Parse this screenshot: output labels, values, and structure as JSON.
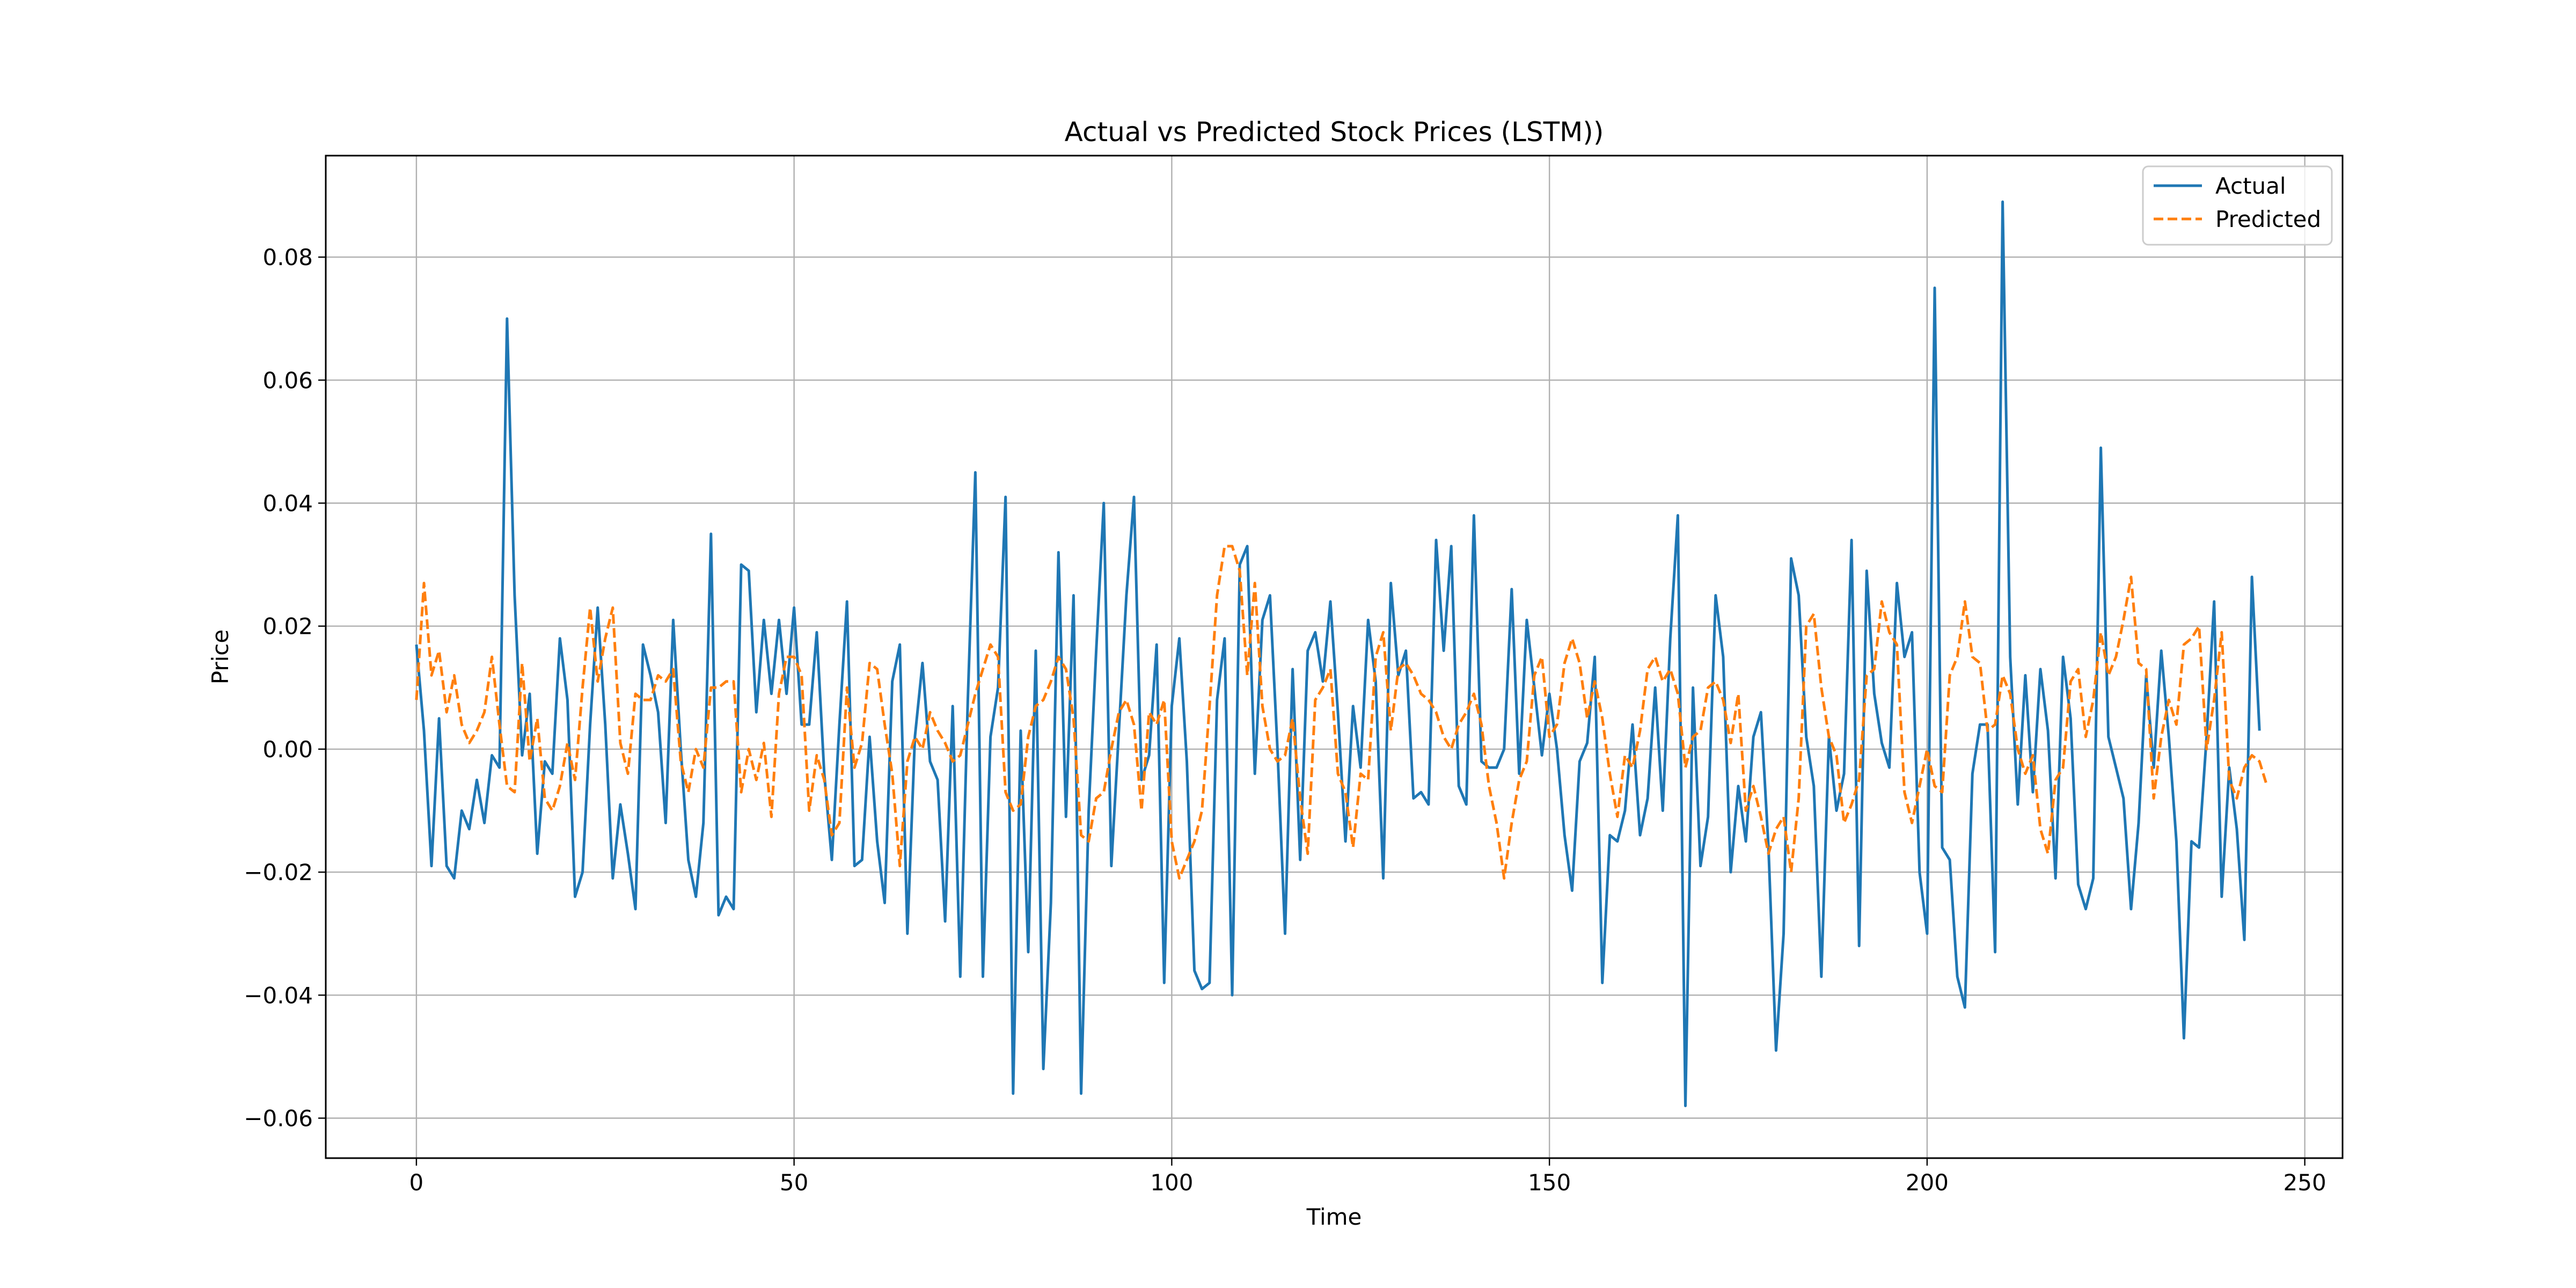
{
  "chart_data": {
    "type": "line",
    "title": "Actual vs Predicted Stock Prices (LSTM))",
    "xlabel": "Time",
    "ylabel": "Price",
    "xlim": [
      -12,
      255
    ],
    "ylim": [
      -0.0665,
      0.0965
    ],
    "xticks": [
      0,
      50,
      100,
      150,
      200,
      250
    ],
    "yticks": [
      -0.06,
      -0.04,
      -0.02,
      0.0,
      0.02,
      0.04,
      0.06,
      0.08
    ],
    "xtick_labels": [
      "0",
      "50",
      "100",
      "150",
      "200",
      "250"
    ],
    "ytick_labels": [
      "−0.06",
      "−0.04",
      "−0.02",
      "0.00",
      "0.02",
      "0.04",
      "0.06",
      "0.08"
    ],
    "grid": true,
    "legend_position": "top-right",
    "series": [
      {
        "name": "Actual",
        "color": "#1f77b4",
        "style": "solid",
        "values": [
          0.017,
          0.003,
          -0.019,
          0.005,
          -0.019,
          -0.021,
          -0.01,
          -0.013,
          -0.005,
          -0.012,
          -0.001,
          -0.003,
          0.07,
          0.025,
          -0.001,
          0.009,
          -0.017,
          -0.002,
          -0.004,
          0.018,
          0.008,
          -0.024,
          -0.02,
          0.004,
          0.023,
          0.004,
          -0.021,
          -0.009,
          -0.017,
          -0.026,
          0.017,
          0.012,
          0.006,
          -0.012,
          0.021,
          0.0,
          -0.018,
          -0.024,
          -0.012,
          0.035,
          -0.027,
          -0.024,
          -0.026,
          0.03,
          0.029,
          0.006,
          0.021,
          0.009,
          0.021,
          0.009,
          0.023,
          0.004,
          0.004,
          0.019,
          -0.004,
          -0.018,
          0.004,
          0.024,
          -0.019,
          -0.018,
          0.002,
          -0.015,
          -0.025,
          0.011,
          0.017,
          -0.03,
          0.002,
          0.014,
          -0.002,
          -0.005,
          -0.028,
          0.007,
          -0.037,
          0.008,
          0.045,
          -0.037,
          0.002,
          0.01,
          0.041,
          -0.056,
          0.003,
          -0.033,
          0.016,
          -0.052,
          -0.025,
          0.032,
          -0.011,
          0.025,
          -0.056,
          -0.01,
          0.016,
          0.04,
          -0.019,
          0.003,
          0.025,
          0.041,
          -0.005,
          -0.001,
          0.017,
          -0.038,
          0.007,
          0.018,
          -0.002,
          -0.036,
          -0.039,
          -0.038,
          0.008,
          0.018,
          -0.04,
          0.03,
          0.033,
          -0.004,
          0.021,
          0.025,
          0.0,
          -0.03,
          0.013,
          -0.018,
          0.016,
          0.019,
          0.011,
          0.024,
          0.006,
          -0.015,
          0.007,
          -0.003,
          0.021,
          0.011,
          -0.021,
          0.027,
          0.012,
          0.016,
          -0.008,
          -0.007,
          -0.009,
          0.034,
          0.016,
          0.033,
          -0.006,
          -0.009,
          0.038,
          -0.002,
          -0.003,
          -0.003,
          0.0,
          0.026,
          -0.004,
          0.021,
          0.01,
          -0.001,
          0.009,
          0.0,
          -0.014,
          -0.023,
          -0.002,
          0.001,
          0.015,
          -0.038,
          -0.014,
          -0.015,
          -0.01,
          0.004,
          -0.014,
          -0.008,
          0.01,
          -0.01,
          0.018,
          0.038,
          -0.058,
          0.01,
          -0.019,
          -0.011,
          0.025,
          0.015,
          -0.02,
          -0.006,
          -0.015,
          0.002,
          0.006,
          -0.016,
          -0.049,
          -0.03,
          0.031,
          0.025,
          0.002,
          -0.006,
          -0.037,
          0.002,
          -0.01,
          -0.004,
          0.034,
          -0.032,
          0.029,
          0.009,
          0.001,
          -0.003,
          0.027,
          0.015,
          0.019,
          -0.02,
          -0.03,
          0.075,
          -0.016,
          -0.018,
          -0.037,
          -0.042,
          -0.004,
          0.004,
          0.004,
          -0.033,
          0.089,
          0.015,
          -0.009,
          0.012,
          -0.007,
          0.013,
          0.003,
          -0.021,
          0.015,
          0.005,
          -0.022,
          -0.026,
          -0.021,
          0.049,
          0.002,
          -0.003,
          -0.008,
          -0.026,
          -0.012,
          0.012,
          -0.003,
          0.016,
          0.002,
          -0.015,
          -0.047,
          -0.015,
          -0.016,
          0.002,
          0.024,
          -0.024,
          -0.003,
          -0.013,
          -0.031,
          0.028,
          0.003
        ]
      },
      {
        "name": "Predicted",
        "color": "#ff7f0e",
        "style": "dashed",
        "values": [
          0.008,
          0.027,
          0.012,
          0.016,
          0.006,
          0.012,
          0.004,
          0.001,
          0.003,
          0.006,
          0.015,
          0.004,
          -0.006,
          -0.007,
          0.014,
          -0.002,
          0.005,
          -0.008,
          -0.01,
          -0.006,
          0.001,
          -0.005,
          0.01,
          0.023,
          0.011,
          0.018,
          0.023,
          0.001,
          -0.004,
          0.009,
          0.008,
          0.008,
          0.012,
          0.011,
          0.013,
          -0.002,
          -0.007,
          0.0,
          -0.003,
          0.01,
          0.01,
          0.011,
          0.011,
          -0.007,
          0.0,
          -0.005,
          0.001,
          -0.011,
          0.009,
          0.015,
          0.015,
          0.012,
          -0.01,
          -0.001,
          -0.005,
          -0.014,
          -0.012,
          0.01,
          -0.003,
          0.001,
          0.014,
          0.013,
          0.004,
          -0.004,
          -0.019,
          -0.002,
          0.002,
          0.0,
          0.006,
          0.003,
          0.001,
          -0.002,
          -0.001,
          0.004,
          0.009,
          0.013,
          0.017,
          0.015,
          -0.007,
          -0.01,
          -0.009,
          0.002,
          0.007,
          0.008,
          0.011,
          0.015,
          0.013,
          0.005,
          -0.014,
          -0.015,
          -0.008,
          -0.007,
          0.0,
          0.006,
          0.008,
          0.004,
          -0.01,
          0.006,
          0.004,
          0.008,
          -0.015,
          -0.021,
          -0.018,
          -0.015,
          -0.01,
          0.007,
          0.025,
          0.033,
          0.033,
          0.029,
          0.012,
          0.027,
          0.007,
          0.0,
          -0.002,
          -0.001,
          0.005,
          -0.008,
          -0.017,
          0.008,
          0.01,
          0.013,
          -0.004,
          -0.007,
          -0.016,
          -0.004,
          -0.005,
          0.015,
          0.019,
          0.003,
          0.013,
          0.014,
          0.012,
          0.009,
          0.008,
          0.006,
          0.002,
          0.0,
          0.004,
          0.006,
          0.009,
          0.004,
          -0.006,
          -0.012,
          -0.021,
          -0.012,
          -0.005,
          -0.002,
          0.012,
          0.015,
          0.002,
          0.004,
          0.014,
          0.018,
          0.014,
          0.005,
          0.011,
          0.005,
          -0.004,
          -0.011,
          -0.001,
          -0.003,
          0.003,
          0.013,
          0.015,
          0.011,
          0.013,
          0.009,
          -0.003,
          0.002,
          0.003,
          0.01,
          0.011,
          0.008,
          0.001,
          0.009,
          -0.01,
          -0.006,
          -0.011,
          -0.017,
          -0.013,
          -0.011,
          -0.02,
          -0.008,
          0.02,
          0.022,
          0.01,
          0.002,
          -0.001,
          -0.012,
          -0.009,
          -0.005,
          0.012,
          0.013,
          0.024,
          0.019,
          0.017,
          -0.007,
          -0.012,
          -0.006,
          0.0,
          -0.006,
          -0.007,
          0.012,
          0.015,
          0.024,
          0.015,
          0.014,
          0.003,
          0.004,
          0.012,
          0.009,
          0.0,
          -0.004,
          -0.001,
          -0.013,
          -0.017,
          -0.005,
          -0.003,
          0.011,
          0.013,
          0.002,
          0.008,
          0.019,
          0.012,
          0.015,
          0.021,
          0.028,
          0.014,
          0.013,
          -0.008,
          0.002,
          0.008,
          0.004,
          0.017,
          0.018,
          0.02,
          0.0,
          0.008,
          0.019,
          -0.005,
          -0.008,
          -0.003,
          -0.001,
          -0.002,
          -0.006
        ]
      }
    ]
  }
}
